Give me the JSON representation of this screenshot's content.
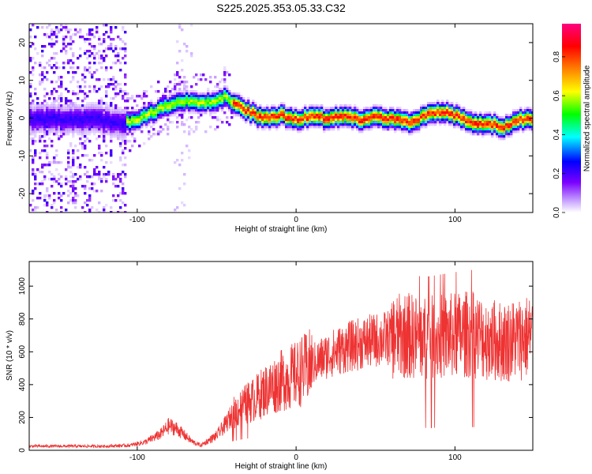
{
  "title": "S225.2025.353.05.33.C32",
  "colorbar": {
    "label": "Normalized spectral amplitude",
    "ticks": [
      "0.0",
      "0.2",
      "0.4",
      "0.6",
      "0.8"
    ],
    "tick_values": [
      0.0,
      0.2,
      0.4,
      0.6,
      0.8
    ],
    "range": [
      0.0,
      0.97
    ]
  },
  "chart_data": [
    {
      "type": "heatmap",
      "title": "",
      "xlabel": "Height of straight line (km)",
      "ylabel": "Frequency (Hz)",
      "xlim": [
        -168,
        149
      ],
      "ylim": [
        -25,
        25
      ],
      "xticks": [
        -100,
        0,
        100
      ],
      "yticks": [
        -20,
        -10,
        0,
        10,
        20
      ],
      "colormap": "rainbow (white-purple-blue-cyan-green-yellow-orange-red-magenta)",
      "ridge_x": [
        -168,
        -150,
        -130,
        -110,
        -100,
        -90,
        -80,
        -70,
        -60,
        -50,
        -45,
        -40,
        -30,
        -20,
        -10,
        0,
        10,
        20,
        30,
        40,
        50,
        60,
        70,
        80,
        90,
        100,
        110,
        120,
        130,
        140,
        149
      ],
      "ridge_y": [
        0,
        0,
        0,
        -1,
        0,
        2,
        4,
        5,
        4,
        5,
        6,
        4,
        2,
        0,
        1,
        0,
        1,
        0,
        1,
        0,
        1,
        0,
        -1,
        1,
        2,
        1,
        -1,
        -1,
        -2,
        0,
        0
      ]
    },
    {
      "type": "line",
      "title": "",
      "xlabel": "Height of straight line (km)",
      "ylabel": "SNR (10 * v/v)",
      "xlim": [
        -168,
        149
      ],
      "ylim": [
        0,
        1150
      ],
      "xticks": [
        -100,
        0,
        100
      ],
      "yticks": [
        0,
        200,
        400,
        600,
        800,
        1000
      ],
      "color": "#ee3333",
      "trend_x": [
        -168,
        -140,
        -120,
        -105,
        -95,
        -85,
        -80,
        -75,
        -70,
        -65,
        -60,
        -55,
        -50,
        -45,
        -40,
        -35,
        -30,
        -25,
        -20,
        -10,
        0,
        10,
        20,
        30,
        40,
        50,
        60,
        70,
        80,
        90,
        100,
        110,
        120,
        130,
        140,
        149
      ],
      "trend_y": [
        25,
        25,
        25,
        30,
        50,
        100,
        150,
        130,
        90,
        50,
        30,
        60,
        90,
        150,
        220,
        260,
        290,
        320,
        360,
        420,
        460,
        520,
        580,
        620,
        650,
        670,
        690,
        700,
        680,
        690,
        700,
        710,
        680,
        660,
        680,
        700
      ]
    }
  ]
}
